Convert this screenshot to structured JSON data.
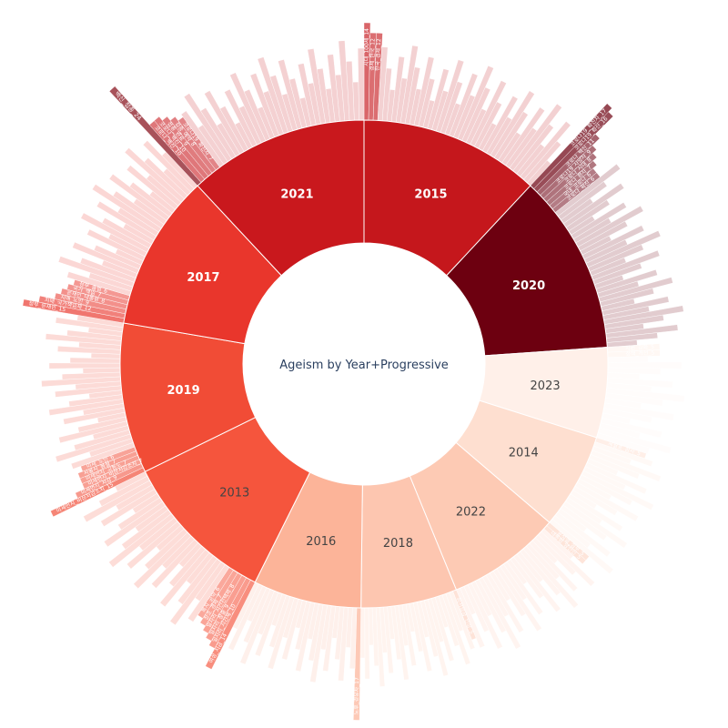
{
  "chart_data": {
    "type": "sunburst",
    "title": "Ageism by Year+Progressive",
    "years": [
      {
        "label": "2015",
        "value": 15.0,
        "color": "#c5171c",
        "text_color": "#ffffff",
        "bold": true,
        "leaf_count": 40,
        "keywords": [
          {
            "label": "시대_100세_14",
            "value": 14
          },
          {
            "label": "경제_한국_12",
            "value": 12
          },
          {
            "label": "한국_경제_12",
            "value": 12
          }
        ]
      },
      {
        "label": "2020",
        "value": 15.0,
        "color": "#6d0010",
        "text_color": "#ffffff",
        "bold": true,
        "leaf_count": 40,
        "keywords": [
          {
            "label": "코로나19_확진자_17",
            "value": 17
          },
          {
            "label": "코로나19_확산_16",
            "value": 16
          },
          {
            "label": "코로나_백신_11",
            "value": 11
          },
          {
            "label": "코로나19_사망자_9",
            "value": 9
          },
          {
            "label": "코로나_시대_8",
            "value": 8
          },
          {
            "label": "코로나_환자_7",
            "value": 7
          },
          {
            "label": "국내_코로나_6",
            "value": 6
          },
          {
            "label": "코로나_확진_6",
            "value": 6
          }
        ]
      },
      {
        "label": "2023",
        "value": 7.5,
        "color": "#fff0e9",
        "text_color": "#444444",
        "bold": false,
        "leaf_count": 18,
        "keywords": [
          {
            "label": "지원_강화_5",
            "value": 5
          },
          {
            "label": "정책_개선_5",
            "value": 5
          }
        ]
      },
      {
        "label": "2014",
        "value": 8.0,
        "color": "#fedfd0",
        "text_color": "#444444",
        "bold": false,
        "leaf_count": 22,
        "keywords": [
          {
            "label": "세월호_참사_5",
            "value": 5
          }
        ]
      },
      {
        "label": "2022",
        "value": 9.5,
        "color": "#fdcab4",
        "text_color": "#444444",
        "bold": false,
        "leaf_count": 28,
        "keywords": [
          {
            "label": "윤석열_정부_5",
            "value": 5
          },
          {
            "label": "대통령_당선인_5",
            "value": 5
          }
        ]
      },
      {
        "label": "2018",
        "value": 8.0,
        "color": "#fdc6b0",
        "text_color": "#444444",
        "bold": false,
        "leaf_count": 26,
        "keywords": [
          {
            "label": "최저임금_인상_5",
            "value": 5
          }
        ]
      },
      {
        "label": "2016",
        "value": 9.0,
        "color": "#fcb499",
        "text_color": "#444444",
        "bold": false,
        "leaf_count": 26,
        "keywords": [
          {
            "label": "노후_경유차_17",
            "value": 17
          }
        ]
      },
      {
        "label": "2013",
        "value": 13.0,
        "color": "#f5553d",
        "text_color": "#444444",
        "bold": false,
        "leaf_count": 32,
        "keywords": [
          {
            "label": "여성_지금_14",
            "value": 14
          },
          {
            "label": "일자리_시간제_10",
            "value": 10
          },
          {
            "label": "일자리_창출_9",
            "value": 9
          },
          {
            "label": "일자리_시간선택제_8",
            "value": 8
          },
          {
            "label": "창조_경제_7",
            "value": 7
          },
          {
            "label": "복지_공약_6",
            "value": 6
          }
        ]
      },
      {
        "label": "2019",
        "value": 12.5,
        "color": "#f14c36",
        "text_color": "#ffffff",
        "bold": true,
        "leaf_count": 34,
        "keywords": [
          {
            "label": "미세먼지_비상저감조치_15",
            "value": 15
          },
          {
            "label": "미세먼지_저감_9",
            "value": 9
          },
          {
            "label": "미세먼지_비상저감조치_7",
            "value": 7
          },
          {
            "label": "미세먼지_고농도_7",
            "value": 7
          },
          {
            "label": "서울시_봄철_7",
            "value": 7
          },
          {
            "label": "미세_노인_6",
            "value": 6
          }
        ]
      },
      {
        "label": "2017",
        "value": 13.0,
        "color": "#e9362c",
        "text_color": "#ffffff",
        "bold": true,
        "leaf_count": 34,
        "keywords": [
          {
            "label": "정부_문재인_15",
            "value": 15
          },
          {
            "label": "치매_국가책임제_12",
            "value": 12
          },
          {
            "label": "치매_노인_9",
            "value": 9
          },
          {
            "label": "문재인_대통령_8",
            "value": 8
          },
          {
            "label": "국가_책임_7",
            "value": 7
          },
          {
            "label": "정부_출범_6",
            "value": 6
          }
        ]
      },
      {
        "label": "2021",
        "value": 15.0,
        "color": "#c9181d",
        "text_color": "#ffffff",
        "bold": true,
        "leaf_count": 38,
        "keywords": [
          {
            "label": "백신_접종_24",
            "value": 24
          },
          {
            "label": "코로나_백신_10",
            "value": 10
          },
          {
            "label": "코로나_백신_10",
            "value": 10
          },
          {
            "label": "접종_완료_9",
            "value": 9
          },
          {
            "label": "접종_예약_8",
            "value": 8
          },
          {
            "label": "코로나19_확진자_7",
            "value": 7
          }
        ]
      }
    ]
  }
}
